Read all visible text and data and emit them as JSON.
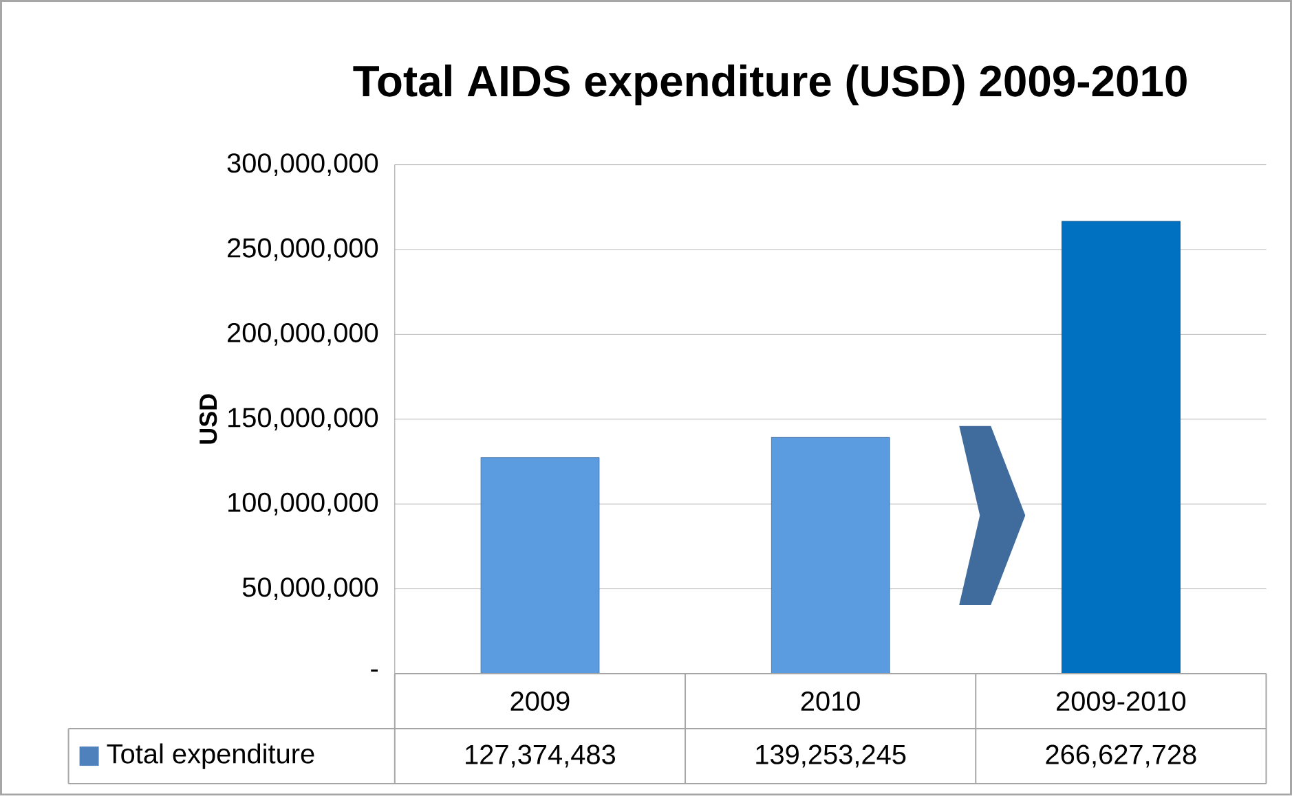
{
  "chart_data": {
    "type": "bar",
    "title": "Total AIDS expenditure (USD) 2009-2010",
    "ylabel": "USD",
    "categories": [
      "2009",
      "2010",
      "2009-2010"
    ],
    "series": [
      {
        "name": "Total expenditure",
        "color": "#4f81bd",
        "colors": [
          "#5b9be0",
          "#5b9be0",
          "#0070c0"
        ],
        "values": [
          127374483,
          139253245,
          266627728
        ],
        "value_labels": [
          "127,374,483",
          "139,253,245",
          "266,627,728"
        ]
      }
    ],
    "ylim": [
      0,
      300000000
    ],
    "yticks": [
      {
        "value": 0,
        "label": "-"
      },
      {
        "value": 50000000,
        "label": "50,000,000"
      },
      {
        "value": 100000000,
        "label": "100,000,000"
      },
      {
        "value": 150000000,
        "label": "150,000,000"
      },
      {
        "value": 200000000,
        "label": "200,000,000"
      },
      {
        "value": 250000000,
        "label": "250,000,000"
      },
      {
        "value": 300000000,
        "label": "300,000,000"
      }
    ],
    "grid": "y",
    "legend": "bottom"
  }
}
